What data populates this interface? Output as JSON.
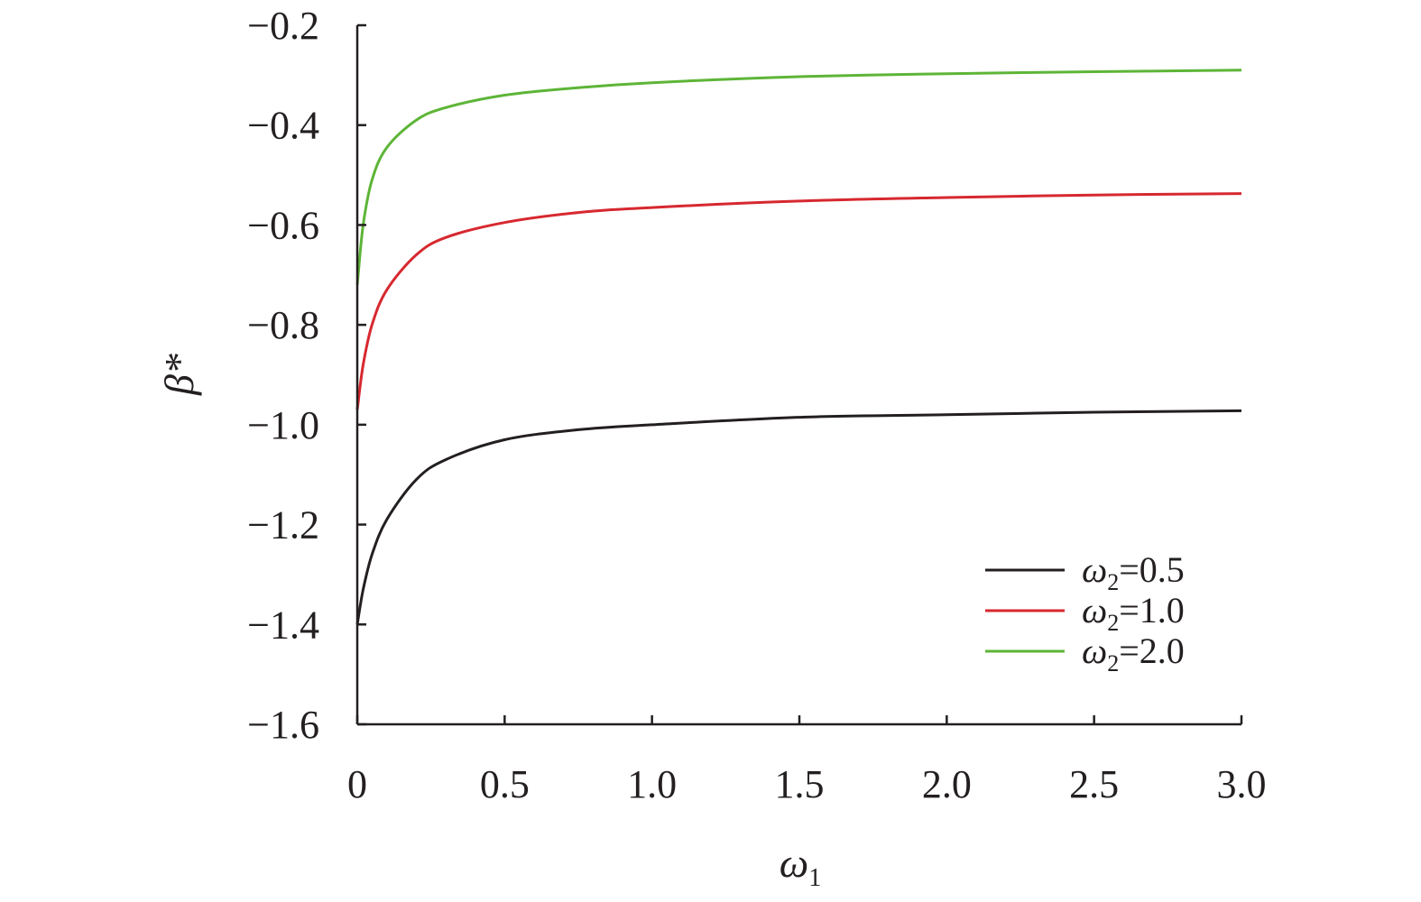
{
  "chart_data": {
    "type": "line",
    "title": "",
    "xlabel": "ω",
    "xlabel_sub": "1",
    "ylabel": "β*",
    "xlim": [
      0,
      3.0
    ],
    "ylim": [
      -1.6,
      -0.2
    ],
    "x_ticks": [
      0,
      0.5,
      1.0,
      1.5,
      2.0,
      2.5,
      3.0
    ],
    "x_tick_labels": [
      "0",
      "0.5",
      "1.0",
      "1.5",
      "2.0",
      "2.5",
      "3.0"
    ],
    "y_ticks": [
      -0.2,
      -0.4,
      -0.6,
      -0.8,
      -1.0,
      -1.2,
      -1.4,
      -1.6
    ],
    "y_tick_labels": [
      "−0.2",
      "−0.4",
      "−0.6",
      "−0.8",
      "−1.0",
      "−1.2",
      "−1.4",
      "−1.6"
    ],
    "grid": false,
    "legend_position": "bottom-right",
    "x": [
      0,
      0.02,
      0.05,
      0.1,
      0.2,
      0.3,
      0.5,
      0.75,
      1.0,
      1.5,
      2.0,
      2.5,
      3.0
    ],
    "series": [
      {
        "name": "ω",
        "name_sub": "2",
        "name_suffix": "=0.5",
        "color": "#231f20",
        "values": [
          -1.4,
          -1.33,
          -1.26,
          -1.19,
          -1.11,
          -1.07,
          -1.03,
          -1.01,
          -1.0,
          -0.985,
          -0.98,
          -0.975,
          -0.972
        ]
      },
      {
        "name": "ω",
        "name_sub": "2",
        "name_suffix": "=1.0",
        "color": "#d7282f",
        "values": [
          -0.97,
          -0.88,
          -0.8,
          -0.73,
          -0.66,
          -0.625,
          -0.595,
          -0.575,
          -0.565,
          -0.552,
          -0.545,
          -0.54,
          -0.537
        ]
      },
      {
        "name": "ω",
        "name_sub": "2",
        "name_suffix": "=2.0",
        "color": "#5db537",
        "values": [
          -0.72,
          -0.6,
          -0.51,
          -0.445,
          -0.39,
          -0.365,
          -0.34,
          -0.325,
          -0.315,
          -0.303,
          -0.297,
          -0.293,
          -0.29
        ]
      }
    ]
  }
}
